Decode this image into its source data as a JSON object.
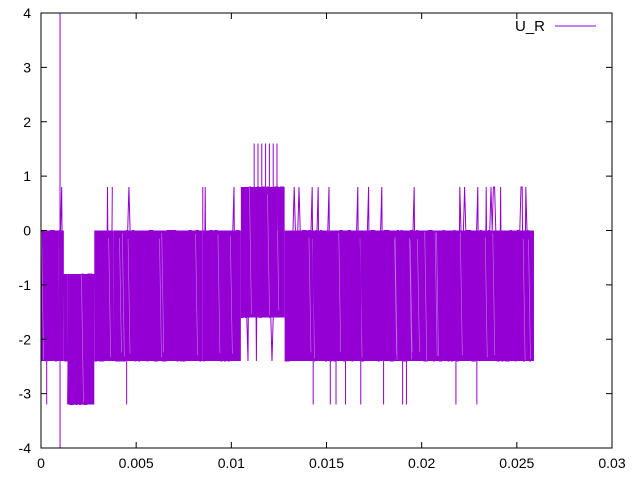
{
  "chart_data": {
    "type": "line",
    "title": "",
    "xlabel": "",
    "ylabel": "",
    "xlim": [
      0,
      0.03
    ],
    "ylim": [
      -4,
      4
    ],
    "xticks": [
      0,
      0.005,
      0.01,
      0.015,
      0.02,
      0.025,
      0.03
    ],
    "xtick_labels": [
      "0",
      "0.005",
      "0.01",
      "0.015",
      "0.02",
      "0.025",
      "0.03"
    ],
    "yticks": [
      -4,
      -3,
      -2,
      -1,
      0,
      1,
      2,
      3,
      4
    ],
    "ytick_labels": [
      "-4",
      "-3",
      "-2",
      "-1",
      "0",
      "1",
      "2",
      "3",
      "4"
    ],
    "grid": false,
    "legend_position": "top-right",
    "series": [
      {
        "name": "U_R",
        "color": "#9400d3",
        "levels": [
          0.8,
          0,
          -0.8,
          -1.6,
          -2.4
        ],
        "x_range": [
          0,
          0.026
        ],
        "segments": [
          {
            "x": [
              0,
              0.0009
            ],
            "low": -2.4,
            "high": 0
          },
          {
            "x": [
              0.0009,
              0.0012
            ],
            "low": -2.4,
            "high": 0
          },
          {
            "x": [
              0.0012,
              0.0014
            ],
            "low": -2.4,
            "high": -0.8
          },
          {
            "x": [
              0.0014,
              0.0028
            ],
            "low": -3.2,
            "high": -0.8
          },
          {
            "x": [
              0.0028,
              0.0038
            ],
            "low": -2.4,
            "high": 0
          },
          {
            "x": [
              0.0038,
              0.0085
            ],
            "low": -2.4,
            "high": 0
          },
          {
            "x": [
              0.0085,
              0.0105
            ],
            "low": -2.4,
            "high": 0
          },
          {
            "x": [
              0.0105,
              0.0128
            ],
            "low": -1.6,
            "high": 0.8
          },
          {
            "x": [
              0.0128,
              0.0259
            ],
            "low": -2.4,
            "high": 0
          }
        ],
        "spikes": [
          {
            "x": 0.001,
            "y": 4
          },
          {
            "x": 0.001,
            "y": -4
          },
          {
            "x": 0.0003,
            "y": -3.2
          },
          {
            "x": 0.0045,
            "y": -3.2
          },
          {
            "x": 0.0085,
            "y": 0.8
          },
          {
            "x": 0.0112,
            "y": 1.6
          },
          {
            "x": 0.0114,
            "y": 1.6
          },
          {
            "x": 0.0116,
            "y": 1.6
          },
          {
            "x": 0.0118,
            "y": 1.6
          },
          {
            "x": 0.012,
            "y": 1.6
          },
          {
            "x": 0.0122,
            "y": 1.6
          },
          {
            "x": 0.0124,
            "y": 1.6
          },
          {
            "x": 0.0143,
            "y": -3.2
          },
          {
            "x": 0.0152,
            "y": -3.2
          },
          {
            "x": 0.0155,
            "y": -3.2
          },
          {
            "x": 0.016,
            "y": -3.2
          },
          {
            "x": 0.0168,
            "y": -3.2
          },
          {
            "x": 0.018,
            "y": -3.2
          },
          {
            "x": 0.019,
            "y": -3.2
          },
          {
            "x": 0.0192,
            "y": -3.2
          },
          {
            "x": 0.0218,
            "y": -3.2
          },
          {
            "x": 0.0229,
            "y": -3.2
          }
        ]
      }
    ]
  }
}
